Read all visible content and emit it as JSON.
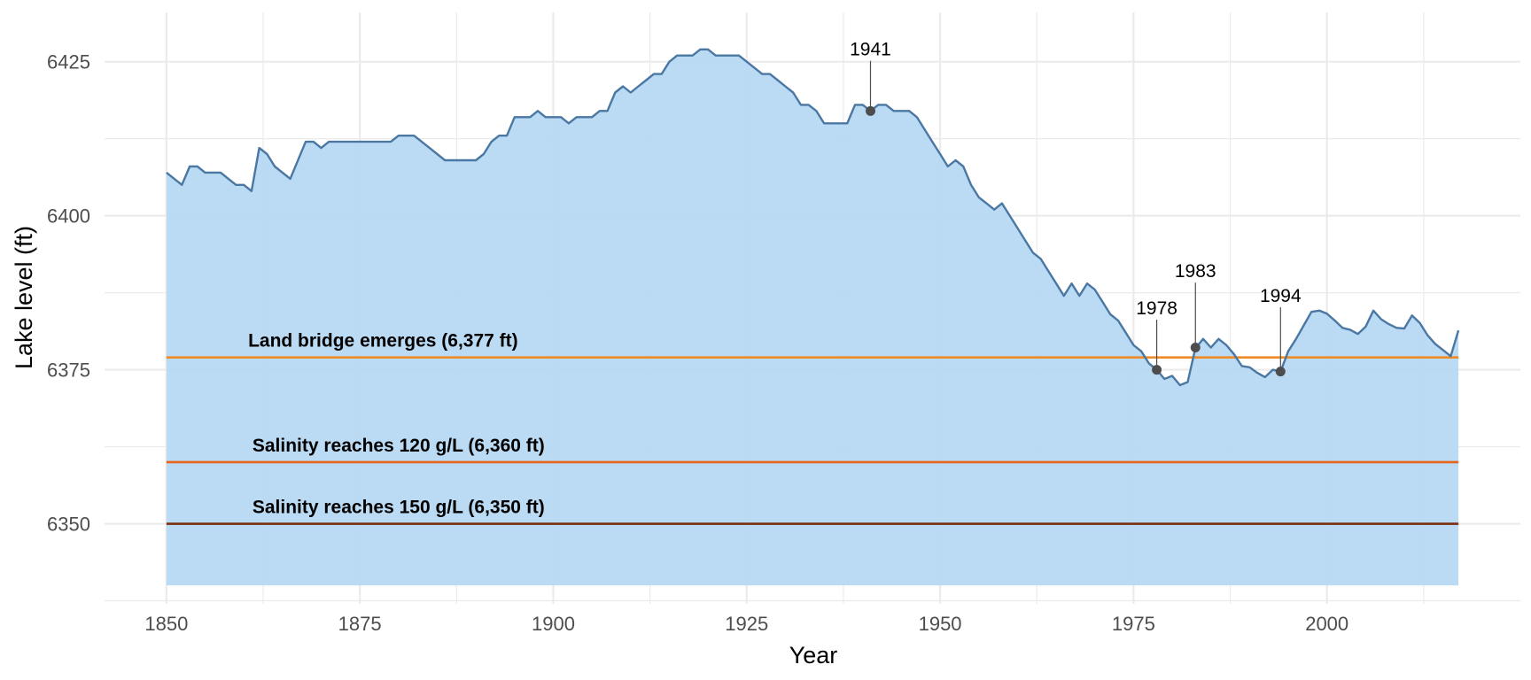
{
  "chart_data": {
    "type": "area",
    "title": "",
    "xlabel": "Year",
    "ylabel": "Lake level (ft)",
    "xlim": [
      1842,
      2025
    ],
    "ylim": [
      6337,
      6433
    ],
    "area_baseline": 6340,
    "x_ticks": [
      1850,
      1875,
      1900,
      1925,
      1950,
      1975,
      2000
    ],
    "x_tick_labels": [
      "1850",
      "1875",
      "1900",
      "1925",
      "1950",
      "1975",
      "2000"
    ],
    "y_ticks": [
      6350,
      6375,
      6400,
      6425
    ],
    "y_tick_labels": [
      "6350",
      "6375",
      "6400",
      "6425"
    ],
    "grid": true,
    "legend": "none",
    "colors": {
      "area_fill": "#b7d8f3",
      "line": "#4a78a2",
      "grid": "#ebebeb",
      "point": "#4d4d4d"
    },
    "series": [
      {
        "x": [
          1850,
          1852,
          1853,
          1854,
          1855,
          1856,
          1857,
          1858,
          1859,
          1860,
          1861,
          1862,
          1863,
          1864,
          1866,
          1868,
          1869,
          1870,
          1871,
          1872,
          1874,
          1876,
          1878,
          1879,
          1880,
          1881,
          1882,
          1883,
          1884,
          1886,
          1888,
          1889,
          1890,
          1891,
          1892,
          1893,
          1894,
          1895,
          1896,
          1897,
          1898,
          1899,
          1900,
          1901,
          1902,
          1903,
          1904,
          1905,
          1906,
          1907,
          1908,
          1909,
          1910,
          1911,
          1912,
          1913,
          1914,
          1915,
          1916,
          1917,
          1918,
          1919,
          1920,
          1921,
          1922,
          1923,
          1924,
          1925,
          1926,
          1927,
          1928,
          1929,
          1930,
          1931,
          1932,
          1933,
          1934,
          1935,
          1936,
          1937,
          1938,
          1939,
          1940,
          1941,
          1942,
          1943,
          1944,
          1945,
          1946,
          1947,
          1948,
          1949,
          1950,
          1951,
          1952,
          1953,
          1954,
          1955,
          1956,
          1957,
          1958,
          1959,
          1960,
          1961,
          1962,
          1963,
          1964,
          1965,
          1966,
          1967,
          1968,
          1969,
          1970,
          1971,
          1972,
          1973,
          1974,
          1975,
          1976,
          1977,
          1978,
          1979,
          1980,
          1981,
          1982,
          1983,
          1984,
          1985,
          1986,
          1987,
          1988,
          1989,
          1990,
          1991,
          1992,
          1993,
          1994,
          1995,
          1996,
          1997,
          1998,
          1999,
          2000,
          2001,
          2002,
          2003,
          2004,
          2005,
          2006,
          2007,
          2008,
          2009,
          2010,
          2011,
          2012,
          2013,
          2014,
          2015,
          2016,
          2017
        ],
        "values": [
          6407,
          6405,
          6408,
          6408,
          6407,
          6407,
          6407,
          6406,
          6405,
          6405,
          6404,
          6411,
          6410,
          6408,
          6406,
          6412,
          6412,
          6411,
          6412,
          6412,
          6412,
          6412,
          6412,
          6412,
          6413,
          6413,
          6413,
          6412,
          6411,
          6409,
          6409,
          6409,
          6409,
          6410,
          6412,
          6413,
          6413,
          6416,
          6416,
          6416,
          6417,
          6416,
          6416,
          6416,
          6415,
          6416,
          6416,
          6416,
          6417,
          6417,
          6420,
          6421,
          6420,
          6421,
          6422,
          6423,
          6423,
          6425,
          6426,
          6426,
          6426,
          6427,
          6427,
          6426,
          6426,
          6426,
          6426,
          6425,
          6424,
          6423,
          6423,
          6422,
          6421,
          6420,
          6418,
          6418,
          6417,
          6415,
          6415,
          6415,
          6415,
          6418,
          6418,
          6417,
          6418,
          6418,
          6417,
          6417,
          6417,
          6416,
          6414,
          6412,
          6410,
          6408,
          6409,
          6408,
          6405,
          6403,
          6402,
          6401,
          6402,
          6400,
          6398,
          6396,
          6394,
          6393,
          6391,
          6389,
          6387,
          6389,
          6387,
          6389,
          6388,
          6386,
          6384,
          6383,
          6381,
          6379,
          6378,
          6376,
          6375,
          6373.5,
          6374,
          6372.5,
          6373,
          6378.5,
          6380,
          6378.6,
          6380,
          6379,
          6377.5,
          6375.6,
          6375.4,
          6374.5,
          6373.8,
          6375,
          6374.7,
          6378,
          6380,
          6382.2,
          6384.4,
          6384.6,
          6384.1,
          6383,
          6381.8,
          6381.5,
          6380.8,
          6382,
          6384.6,
          6383.2,
          6382.4,
          6381.8,
          6381.7,
          6383.8,
          6382.6,
          6380.6,
          6379.2,
          6378.2,
          6377.2,
          6381.4
        ]
      }
    ],
    "reference_lines": [
      {
        "label": "Land bridge emerges (6,377 ft)",
        "y": 6377,
        "color": "#f08a24",
        "label_x": 1878
      },
      {
        "label": "Salinity reaches 120 g/L (6,360 ft)",
        "y": 6360,
        "color": "#e8641b",
        "label_x": 1880
      },
      {
        "label": "Salinity reaches 150 g/L (6,350 ft)",
        "y": 6350,
        "color": "#7a2e0f",
        "label_x": 1880
      }
    ],
    "annotations": [
      {
        "label": "1941",
        "x": 1941,
        "y": 6417,
        "label_y": 6426
      },
      {
        "label": "1978",
        "x": 1978,
        "y": 6375,
        "label_y": 6384
      },
      {
        "label": "1983",
        "x": 1983,
        "y": 6378.6,
        "label_y": 6390
      },
      {
        "label": "1994",
        "x": 1994,
        "y": 6374.7,
        "label_y": 6386
      }
    ]
  }
}
